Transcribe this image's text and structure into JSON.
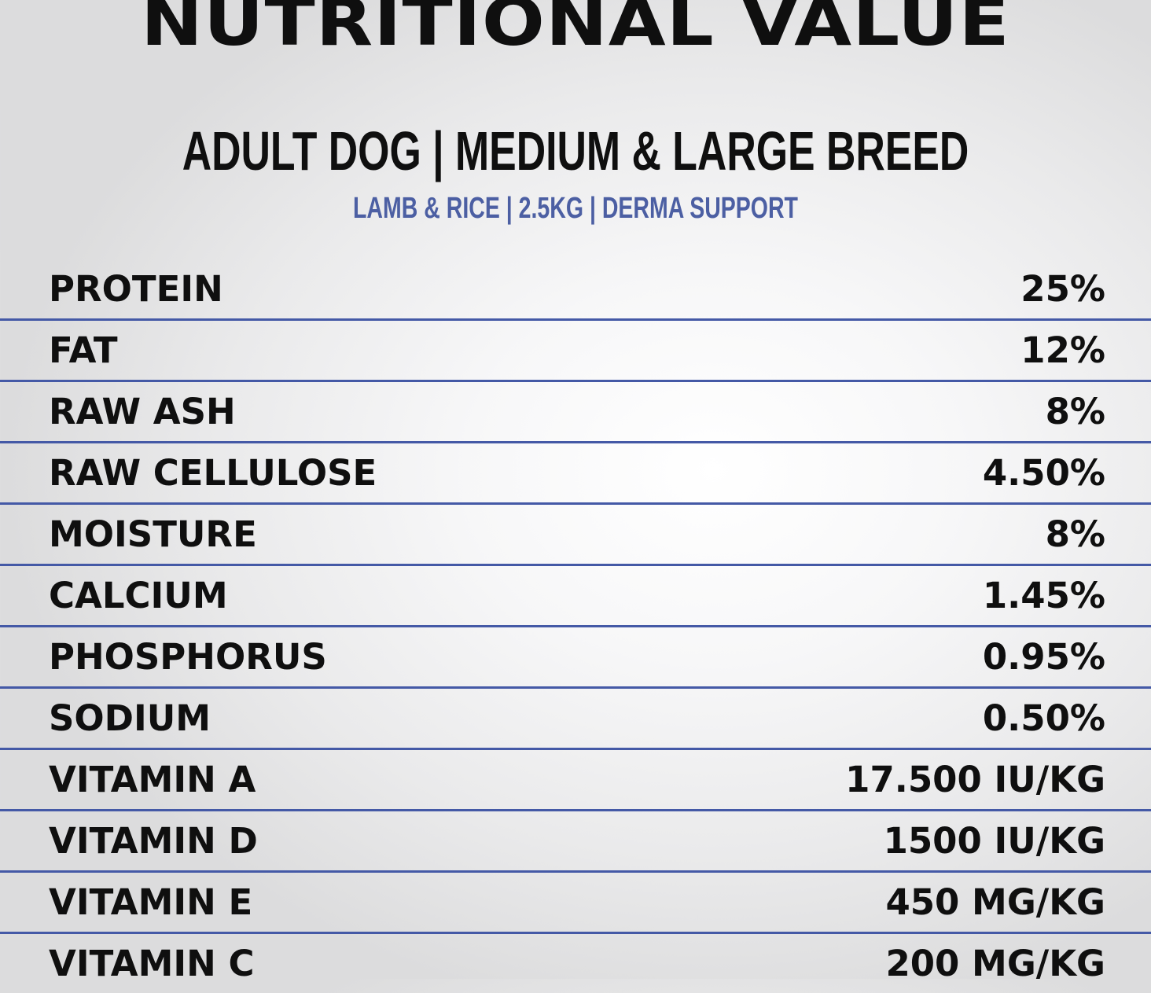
{
  "title": "NUTRITIONAL VALUE",
  "subtitle": "ADULT DOG | MEDIUM & LARGE BREED",
  "product_line": "LAMB & RICE | 2.5KG | DERMA SUPPORT",
  "colors": {
    "accent_blue": "#4459a6",
    "text": "#0f0f0f"
  },
  "nutrients": [
    {
      "label": "PROTEIN",
      "value": "25%"
    },
    {
      "label": "FAT",
      "value": "12%"
    },
    {
      "label": "RAW ASH",
      "value": "8%"
    },
    {
      "label": "RAW CELLULOSE",
      "value": "4.50%"
    },
    {
      "label": "MOISTURE",
      "value": "8%"
    },
    {
      "label": "CALCIUM",
      "value": "1.45%"
    },
    {
      "label": "PHOSPHORUS",
      "value": "0.95%"
    },
    {
      "label": "SODIUM",
      "value": "0.50%"
    },
    {
      "label": "VITAMIN A",
      "value": "17.500 IU/KG"
    },
    {
      "label": "VITAMIN D",
      "value": "1500 IU/KG"
    },
    {
      "label": "VITAMIN E",
      "value": "450 MG/KG"
    },
    {
      "label": "VITAMIN C",
      "value": "200 MG/KG"
    }
  ]
}
